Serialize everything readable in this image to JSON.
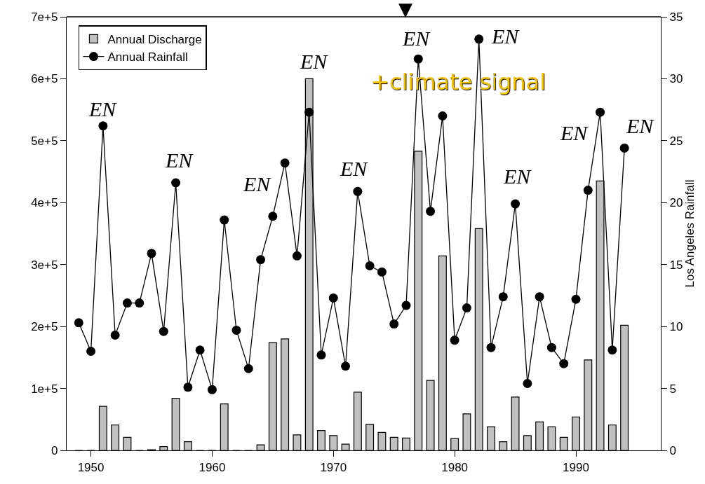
{
  "chart_data": {
    "type": "bar",
    "x": [
      1949,
      1950,
      1951,
      1952,
      1953,
      1954,
      1955,
      1956,
      1957,
      1958,
      1959,
      1960,
      1961,
      1962,
      1963,
      1964,
      1965,
      1966,
      1967,
      1968,
      1969,
      1970,
      1971,
      1972,
      1973,
      1974,
      1975,
      1976,
      1977,
      1978,
      1979,
      1980,
      1981,
      1982,
      1983,
      1984,
      1985,
      1986,
      1987,
      1988,
      1989,
      1990,
      1991,
      1992,
      1993,
      1994
    ],
    "series": [
      {
        "name": "Annual Discharge",
        "color": "#c0c0c0",
        "values": [
          0,
          0,
          71000,
          41000,
          21000,
          0,
          1000,
          6000,
          84000,
          14000,
          0,
          0,
          75000,
          0,
          0,
          9000,
          174000,
          180000,
          25000,
          600000,
          32000,
          24000,
          10000,
          94000,
          42000,
          29000,
          21000,
          20000,
          483000,
          113000,
          314000,
          19000,
          59000,
          358000,
          38000,
          14000,
          86000,
          24000,
          46000,
          38000,
          21000,
          54000,
          146000,
          435000,
          41000,
          202000
        ]
      },
      {
        "name": "Annual Rainfall",
        "type": "line",
        "axis": "y2",
        "color": "#000000",
        "marker": "circle",
        "values": [
          10.3,
          8.0,
          26.2,
          9.3,
          11.9,
          11.9,
          15.9,
          9.6,
          21.6,
          5.1,
          8.1,
          4.9,
          18.6,
          9.7,
          6.6,
          15.4,
          18.9,
          23.2,
          15.7,
          27.3,
          7.7,
          12.3,
          6.8,
          20.9,
          14.9,
          14.4,
          10.2,
          11.7,
          31.6,
          19.3,
          27.0,
          8.9,
          11.5,
          33.2,
          8.3,
          12.4,
          19.9,
          5.4,
          12.4,
          8.3,
          7.0,
          12.2,
          21.0,
          27.3,
          8.1,
          24.4
        ]
      }
    ],
    "xlim": [
      1948,
      1997
    ],
    "xticks": [
      1950,
      1960,
      1970,
      1980,
      1990
    ],
    "ylim": [
      0,
      700000
    ],
    "yticks": [
      0,
      {
        "value": 100000,
        "label": "1e+5"
      },
      {
        "value": 200000,
        "label": "2e+5"
      },
      {
        "value": 300000,
        "label": "3e+5"
      },
      {
        "value": 400000,
        "label": "4e+5"
      },
      {
        "value": 500000,
        "label": "5e+5"
      },
      {
        "value": 600000,
        "label": "6e+5"
      },
      {
        "value": 700000,
        "label": "7e+5"
      }
    ],
    "y2lim": [
      0,
      35
    ],
    "y2ticks": [
      0,
      5,
      10,
      15,
      20,
      25,
      30,
      35
    ],
    "y2label": "Los Angeles Rainfall",
    "legend": "top left",
    "annotations": [
      "EN",
      "EN",
      "EN",
      "EN",
      "EN",
      "EN",
      "EN",
      "EN",
      "EN",
      "EN",
      "▼",
      "+climate signal"
    ]
  }
}
